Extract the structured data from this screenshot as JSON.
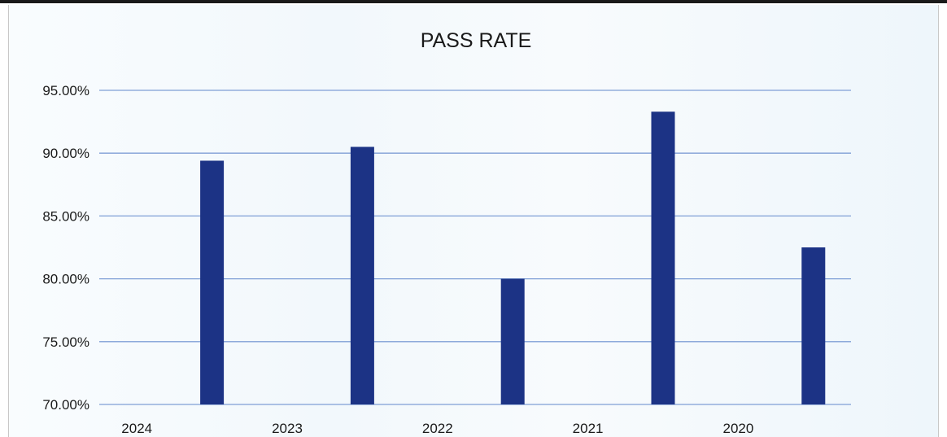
{
  "chart_data": {
    "type": "bar",
    "title": "PASS RATE",
    "xlabel": "",
    "ylabel": "",
    "categories": [
      "2024",
      "2023",
      "2022",
      "2021",
      "2020"
    ],
    "values": [
      0.894,
      0.905,
      0.8,
      0.933,
      0.825
    ],
    "ylim": [
      0.7,
      0.95
    ],
    "yticks": [
      0.95,
      0.9,
      0.85,
      0.8,
      0.75,
      0.7
    ],
    "ytick_labels": [
      "95.00%",
      "90.00%",
      "85.00%",
      "80.00%",
      "75.00%",
      "70.00%"
    ],
    "grid": true,
    "legend": "none",
    "bar_color": "#1c3385",
    "gridline_color": "#7f9fd6"
  }
}
